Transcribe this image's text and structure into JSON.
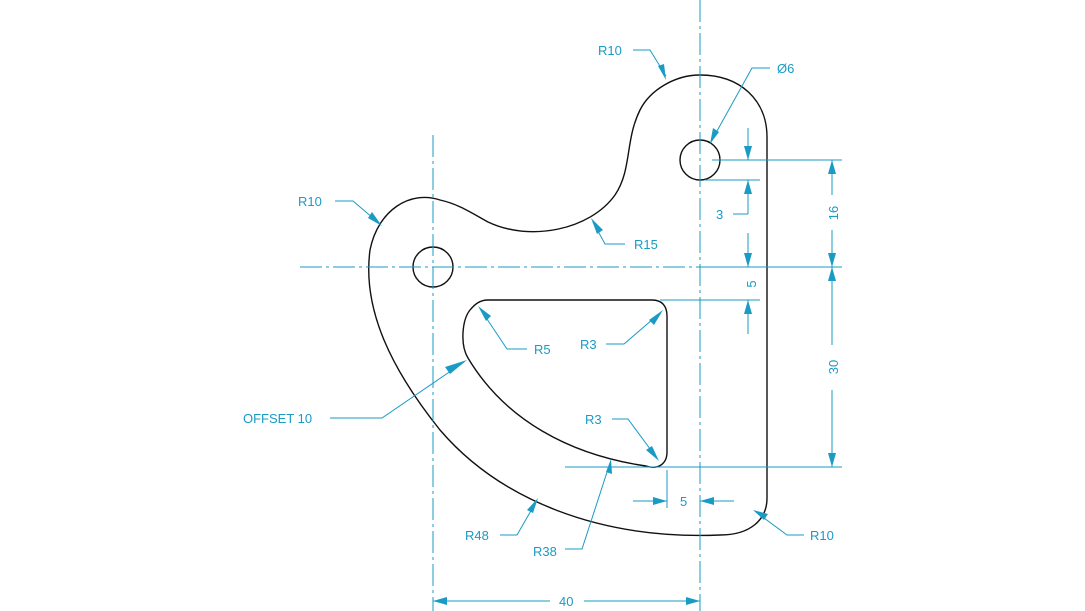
{
  "colors": {
    "dimension": "#1a9bc4",
    "outline": "#111111",
    "background": "#ffffff"
  },
  "labels": {
    "r10_top": "R10",
    "dia6": "Ø6",
    "r10_left": "R10",
    "r15": "R15",
    "r5": "R5",
    "r3_upper": "R3",
    "offset10": "OFFSET 10",
    "r3_lower": "R3",
    "r48": "R48",
    "r38": "R38",
    "r10_bottom": "R10",
    "dim_3": "3",
    "dim_5_vertical": "5",
    "dim_16": "16",
    "dim_30": "30",
    "dim_5_horizontal": "5",
    "dim_40": "40"
  }
}
